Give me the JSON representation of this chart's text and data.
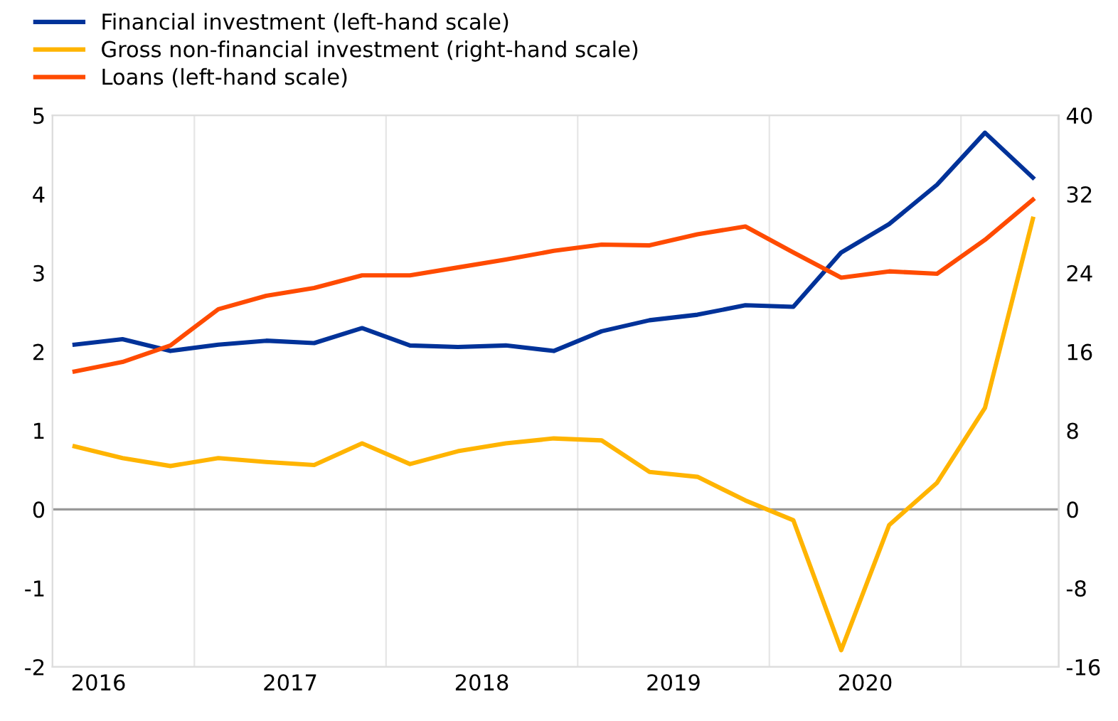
{
  "chart_data": {
    "type": "line",
    "x": [
      2016.375,
      2016.625,
      2016.875,
      2017.125,
      2017.375,
      2017.625,
      2017.875,
      2018.125,
      2018.375,
      2018.625,
      2018.875,
      2019.125,
      2019.375,
      2019.625,
      2019.875,
      2020.125,
      2020.375,
      2020.625,
      2020.875,
      2021.125,
      2021.375
    ],
    "series": [
      {
        "name": "Financial investment (left-hand scale)",
        "color": "#003299",
        "values": [
          2.09,
          2.16,
          2.01,
          2.09,
          2.14,
          2.11,
          2.3,
          2.08,
          2.06,
          2.08,
          2.01,
          2.26,
          2.4,
          2.47,
          2.59,
          2.57,
          3.26,
          3.62,
          4.12,
          4.78,
          4.21
        ]
      },
      {
        "name": "Gross non-financial investment (right-hand scale)",
        "color": "#ffb400",
        "axis": "y2",
        "values": [
          6.4,
          5.2,
          4.4,
          5.2,
          4.8,
          4.5,
          6.7,
          4.6,
          5.9,
          6.7,
          7.2,
          7.0,
          3.8,
          3.3,
          0.9,
          -1.1,
          -14.3,
          -1.6,
          2.7,
          10.3,
          29.5
        ]
      },
      {
        "name": "Loans (left-hand scale)",
        "color": "#ff4b00",
        "values": [
          1.75,
          1.87,
          2.08,
          2.54,
          2.71,
          2.81,
          2.97,
          2.97,
          3.07,
          3.17,
          3.28,
          3.36,
          3.35,
          3.49,
          3.59,
          3.26,
          2.94,
          3.02,
          2.99,
          3.42,
          3.93
        ]
      }
    ],
    "xlim": [
      2016.26,
      2021.51
    ],
    "xticks": [
      {
        "value": 2016.5,
        "label": "2016"
      },
      {
        "value": 2017,
        "label": null
      },
      {
        "value": 2017.5,
        "label": "2017"
      },
      {
        "value": 2018,
        "label": null
      },
      {
        "value": 2018.5,
        "label": "2018"
      },
      {
        "value": 2019,
        "label": null
      },
      {
        "value": 2019.5,
        "label": "2019"
      },
      {
        "value": 2020,
        "label": null
      },
      {
        "value": 2020.5,
        "label": "2020"
      },
      {
        "value": 2021,
        "label": null
      }
    ],
    "ylim": [
      -2,
      5
    ],
    "yticks": [
      -2,
      -1,
      0,
      1,
      2,
      3,
      4,
      5
    ],
    "y2lim": [
      -16,
      40
    ],
    "y2ticks": [
      -16,
      -8,
      0,
      8,
      16,
      24,
      32,
      40
    ],
    "ref_lines": [
      {
        "axis": "y",
        "value": 0,
        "color": "#999999"
      }
    ],
    "grid": "x",
    "legend": "top left",
    "line_style": "solid",
    "marker": "none"
  }
}
